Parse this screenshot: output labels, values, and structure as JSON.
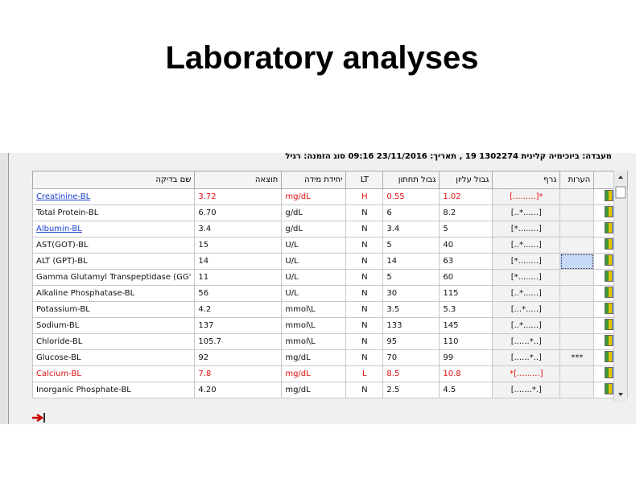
{
  "title": "Laboratory analyses",
  "window": {
    "header_line": "מעבדה: ביוכימיה קלינית 1302274 19 , תאריך: 23/11/2016 09:16 סוג הזמנה: רגיל"
  },
  "table": {
    "columns": [
      "שם בדיקה",
      "תוצאה",
      "יחידת מידה",
      "LT",
      "גבול תחתון",
      "גבול עליון",
      "גרף",
      "הערות"
    ],
    "rows": [
      {
        "cells": [
          "Creatinine-BL",
          "3.72",
          "mg/dL",
          "H",
          "0.55",
          "1.02",
          "[.........]*",
          ""
        ],
        "name_color": "#1a3fd0",
        "name_link": true,
        "value_color": "#e01010"
      },
      {
        "cells": [
          "Total Protein-BL",
          "6.70",
          "g/dL",
          "N",
          "6",
          "8.2",
          "[..*......]",
          ""
        ],
        "name_color": "#111111",
        "name_link": false,
        "value_color": "#111111"
      },
      {
        "cells": [
          "Albumin-BL",
          "3.4",
          "g/dL",
          "N",
          "3.4",
          "5",
          "[*........]",
          ""
        ],
        "name_color": "#1a3fd0",
        "name_link": true,
        "value_color": "#111111"
      },
      {
        "cells": [
          "AST(GOT)-BL",
          "15",
          "U/L",
          "N",
          "5",
          "40",
          "[..*......]",
          ""
        ],
        "name_color": "#111111",
        "name_link": false,
        "value_color": "#111111"
      },
      {
        "cells": [
          "ALT (GPT)-BL",
          "14",
          "U/L",
          "N",
          "14",
          "63",
          "[*........]",
          ""
        ],
        "name_color": "#111111",
        "name_link": false,
        "value_color": "#111111",
        "selected_note": true
      },
      {
        "cells": [
          "Gamma Glutamyl Transpeptidase (GG'",
          "11",
          "U/L",
          "N",
          "5",
          "60",
          "[*........]",
          ""
        ],
        "name_color": "#111111",
        "name_link": false,
        "value_color": "#111111"
      },
      {
        "cells": [
          "Alkaline Phosphatase-BL",
          "56",
          "U/L",
          "N",
          "30",
          "115",
          "[..*......]",
          ""
        ],
        "name_color": "#111111",
        "name_link": false,
        "value_color": "#111111"
      },
      {
        "cells": [
          "Potassium-BL",
          "4.2",
          "mmol\\L",
          "N",
          "3.5",
          "5.3",
          "[...*.....]",
          ""
        ],
        "name_color": "#111111",
        "name_link": false,
        "value_color": "#111111"
      },
      {
        "cells": [
          "Sodium-BL",
          "137",
          "mmol\\L",
          "N",
          "133",
          "145",
          "[..*......]",
          ""
        ],
        "name_color": "#111111",
        "name_link": false,
        "value_color": "#111111"
      },
      {
        "cells": [
          "Chloride-BL",
          "105.7",
          "mmol\\L",
          "N",
          "95",
          "110",
          "[......*..]",
          ""
        ],
        "name_color": "#111111",
        "name_link": false,
        "value_color": "#111111"
      },
      {
        "cells": [
          "Glucose-BL",
          "92",
          "mg/dL",
          "N",
          "70",
          "99",
          "[......*..]",
          "***"
        ],
        "name_color": "#111111",
        "name_link": false,
        "value_color": "#111111"
      },
      {
        "cells": [
          "Calcium-BL",
          "7.8",
          "mg/dL",
          "L",
          "8.5",
          "10.8",
          "*[.........]",
          ""
        ],
        "name_color": "#e01010",
        "name_link": false,
        "value_color": "#e01010"
      },
      {
        "cells": [
          "Inorganic Phosphate-BL",
          "4.20",
          "mg/dL",
          "N",
          "2.5",
          "4.5",
          "[.......*.]",
          ""
        ],
        "name_color": "#111111",
        "name_link": false,
        "value_color": "#111111"
      }
    ]
  }
}
